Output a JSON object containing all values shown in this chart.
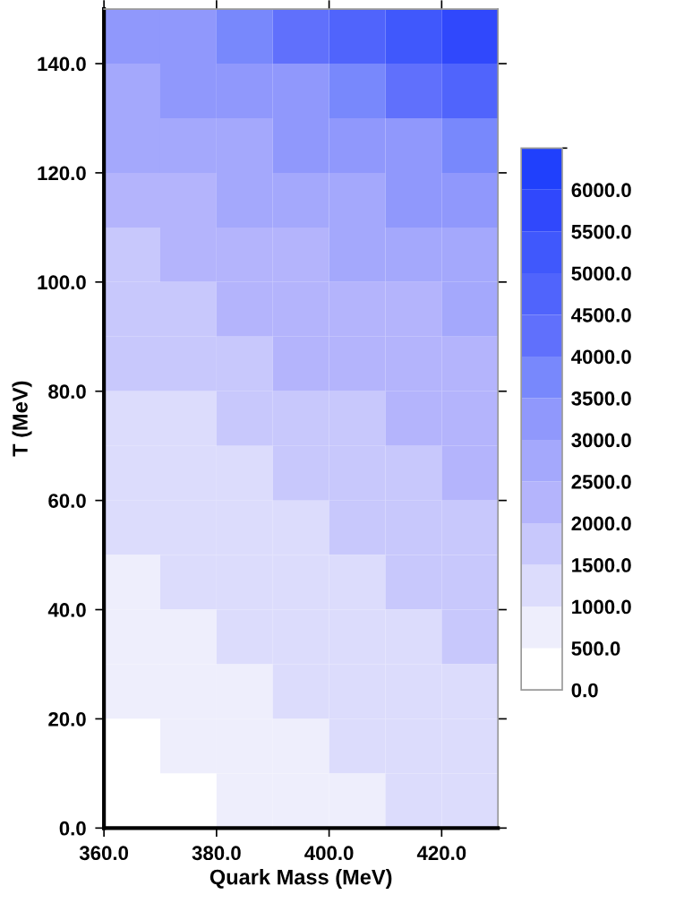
{
  "chart_data": {
    "type": "heatmap",
    "xlabel": "Quark Mass (MeV)",
    "ylabel": "T (MeV)",
    "x": [
      365,
      375,
      385,
      395,
      405,
      415,
      425
    ],
    "y": [
      145,
      135,
      125,
      115,
      105,
      95,
      85,
      75,
      65,
      55,
      45,
      35,
      25,
      15,
      5
    ],
    "cells": [
      [
        3250,
        3250,
        3750,
        4250,
        4750,
        5250,
        5750
      ],
      [
        2750,
        3250,
        3250,
        3250,
        3750,
        4250,
        4750
      ],
      [
        2750,
        2750,
        2750,
        3250,
        3250,
        3250,
        3750
      ],
      [
        2250,
        2250,
        2750,
        2750,
        2750,
        3250,
        3250
      ],
      [
        1750,
        2250,
        2250,
        2250,
        2750,
        2750,
        2750
      ],
      [
        1750,
        1750,
        2250,
        2250,
        2250,
        2250,
        2750
      ],
      [
        1750,
        1750,
        1750,
        2250,
        2250,
        2250,
        2250
      ],
      [
        1250,
        1250,
        1750,
        1750,
        1750,
        2250,
        2250
      ],
      [
        1250,
        1250,
        1250,
        1750,
        1750,
        1750,
        2250
      ],
      [
        1250,
        1250,
        1250,
        1250,
        1750,
        1750,
        1750
      ],
      [
        750,
        1250,
        1250,
        1250,
        1250,
        1750,
        1750
      ],
      [
        750,
        750,
        1250,
        1250,
        1250,
        1250,
        1750
      ],
      [
        750,
        750,
        750,
        1250,
        1250,
        1250,
        1250
      ],
      [
        250,
        750,
        750,
        750,
        1250,
        1250,
        1250
      ],
      [
        250,
        250,
        750,
        750,
        750,
        1250,
        1250
      ]
    ],
    "colors": [
      "#ffffff",
      "#eeeefc",
      "#dcdcfc",
      "#c8c8fc",
      "#b4b4fc",
      "#a4a8fc",
      "#9098fc",
      "#7888fc",
      "#6070fc",
      "#5064fc",
      "#4058fc",
      "#3048fc",
      "#2040fc"
    ],
    "clim": [
      0,
      6500
    ],
    "cticks": [
      {
        "value": 0,
        "label": "0.0"
      },
      {
        "value": 500,
        "label": "500.0"
      },
      {
        "value": 1000,
        "label": "1000.0"
      },
      {
        "value": 1500,
        "label": "1500.0"
      },
      {
        "value": 2000,
        "label": "2000.0"
      },
      {
        "value": 2500,
        "label": "2500.0"
      },
      {
        "value": 3000,
        "label": "3000.0"
      },
      {
        "value": 3500,
        "label": "3500.0"
      },
      {
        "value": 4000,
        "label": "4000.0"
      },
      {
        "value": 4500,
        "label": "4500.0"
      },
      {
        "value": 5000,
        "label": "5000.0"
      },
      {
        "value": 5500,
        "label": "5500.0"
      },
      {
        "value": 6000,
        "label": "6000.0"
      }
    ],
    "xlim": [
      360,
      430
    ],
    "xticks": [
      {
        "value": 360,
        "label": "360.0"
      },
      {
        "value": 380,
        "label": "380.0"
      },
      {
        "value": 400,
        "label": "400.0"
      },
      {
        "value": 420,
        "label": "420.0"
      }
    ],
    "ylim": [
      0,
      150
    ],
    "yticks": [
      {
        "value": 0,
        "label": "0.0"
      },
      {
        "value": 20,
        "label": "20.0"
      },
      {
        "value": 40,
        "label": "40.0"
      },
      {
        "value": 60,
        "label": "60.0"
      },
      {
        "value": 80,
        "label": "80.0"
      },
      {
        "value": 100,
        "label": "100.0"
      },
      {
        "value": 120,
        "label": "120.0"
      },
      {
        "value": 140,
        "label": "140.0"
      }
    ]
  }
}
